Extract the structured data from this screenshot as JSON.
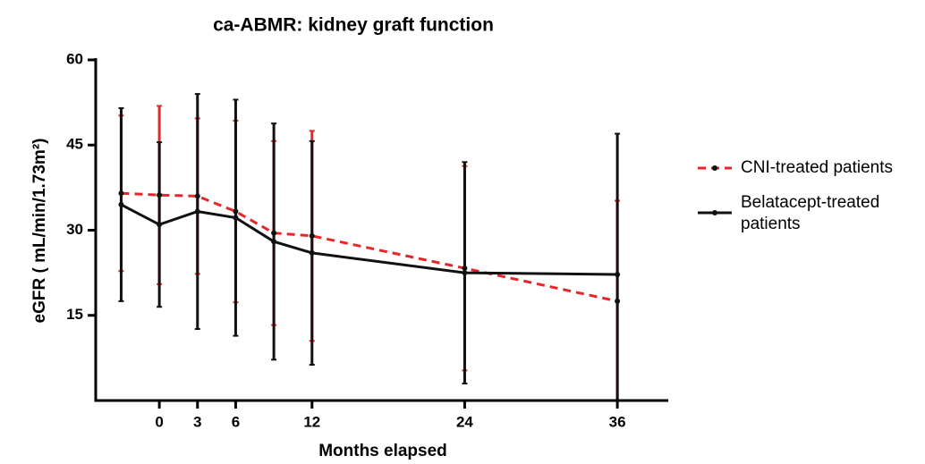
{
  "chart_data": {
    "type": "line",
    "title": "ca-ABMR: kidney graft function",
    "x_label": "Months elapsed",
    "y_label": "eGFR ( mL/min/1.73m²)",
    "x": [
      -3,
      0,
      3,
      6,
      9,
      12,
      24,
      36
    ],
    "xlim": [
      -5,
      40
    ],
    "xticks": [
      0,
      3,
      6,
      12,
      24,
      36
    ],
    "ylim": [
      0,
      60
    ],
    "yticks": [
      15,
      30,
      45,
      60
    ],
    "legend": "right",
    "series": [
      {
        "name": "CNI-treated patients",
        "color": "#e8262a",
        "dash": true,
        "values": [
          36.5,
          36.2,
          36,
          33.3,
          29.5,
          29,
          23.3,
          17.5
        ],
        "errors": [
          13.7,
          15.7,
          13.7,
          16,
          16.2,
          18.5,
          18,
          17.7
        ]
      },
      {
        "name": "Belatacept-treated patients",
        "color": "#111111",
        "dash": false,
        "values": [
          34.5,
          31,
          33.3,
          32.2,
          28,
          26,
          22.5,
          22.2
        ],
        "errors": [
          17,
          14.5,
          20.7,
          20.8,
          20.8,
          19.7,
          19.5,
          24.8
        ]
      }
    ]
  }
}
